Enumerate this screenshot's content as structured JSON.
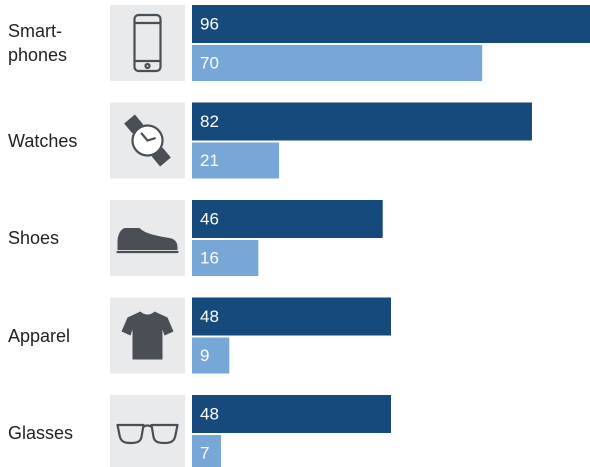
{
  "chart_data": {
    "type": "bar",
    "orientation": "horizontal",
    "categories": [
      "Smart-\nphones",
      "Watches",
      "Shoes",
      "Apparel",
      "Glasses"
    ],
    "series": [
      {
        "color": "#174a7c",
        "values": [
          96,
          82,
          46,
          48,
          48
        ]
      },
      {
        "color": "#76a7d6",
        "values": [
          70,
          21,
          16,
          9,
          7
        ]
      }
    ],
    "icon_background": "#e8eaec"
  }
}
